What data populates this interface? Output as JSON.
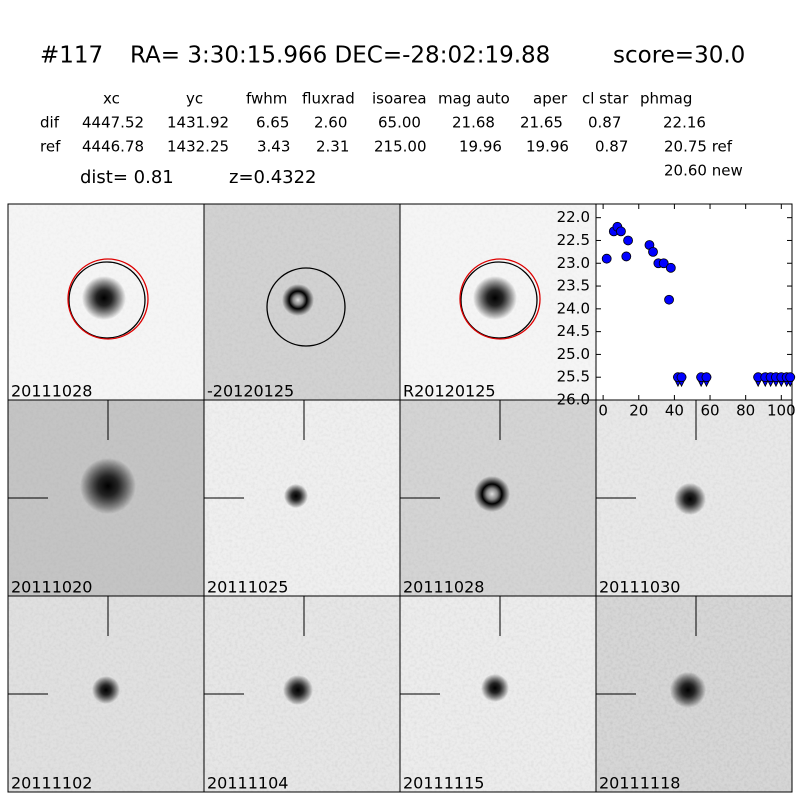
{
  "header": {
    "id": "#117",
    "coords": "RA= 3:30:15.966 DEC=-28:02:19.88",
    "score": "score=30.0"
  },
  "table": {
    "columns": [
      "xc",
      "yc",
      "fwhm",
      "fluxrad",
      "isoarea",
      "mag auto",
      "aper",
      "cl star",
      "phmag"
    ],
    "rows": [
      [
        "dif",
        "4447.52",
        "1431.92",
        "6.65",
        "2.60",
        "65.00",
        "21.68",
        "21.65",
        "0.87",
        "22.16"
      ],
      [
        "ref",
        "4446.78",
        "1432.25",
        "3.43",
        "2.31",
        "215.00",
        "19.96",
        "19.96",
        "0.87",
        "20.75 ref"
      ]
    ],
    "extra": "20.60 new",
    "dist": "dist=  0.81",
    "z": "z=0.4322"
  },
  "panels": [
    {
      "label": "20111028"
    },
    {
      "label": "-20120125"
    },
    {
      "label": "R20120125"
    },
    {
      "label": "20111020"
    },
    {
      "label": "20111025"
    },
    {
      "label": "20111028",
      "label_color": "#ff0000"
    },
    {
      "label": "20111030"
    },
    {
      "label": "20111102"
    },
    {
      "label": "20111104"
    },
    {
      "label": "20111115"
    },
    {
      "label": "20111118"
    }
  ],
  "chart_data": {
    "type": "scatter",
    "color": "#0000ff",
    "x": [
      2,
      6,
      8,
      10,
      13,
      14,
      26,
      28,
      31,
      34,
      37,
      38
    ],
    "values": [
      22.9,
      22.3,
      22.2,
      22.3,
      22.85,
      22.5,
      22.6,
      22.75,
      23.0,
      23.0,
      23.8,
      23.1
    ],
    "limit_x": [
      42,
      44,
      55,
      58,
      87,
      91,
      94,
      97,
      100,
      103,
      105
    ],
    "limit_values": [
      25.5,
      25.5,
      25.5,
      25.5,
      25.5,
      25.5,
      25.5,
      25.5,
      25.5,
      25.5,
      25.5
    ],
    "xlim": [
      -4,
      106
    ],
    "xticks": [
      0,
      20,
      40,
      60,
      80,
      100
    ],
    "ylim": [
      21.7,
      26.0
    ],
    "y_inverted": true,
    "yticks": [
      {
        "value": 22,
        "label": "22.0"
      },
      {
        "value": 22.5,
        "label": "22.5"
      },
      {
        "value": 23,
        "label": "23.0"
      },
      {
        "value": 23.5,
        "label": "23.5"
      },
      {
        "value": 24,
        "label": "24.0"
      },
      {
        "value": 24.5,
        "label": "24.5"
      },
      {
        "value": 25,
        "label": "25.0"
      },
      {
        "value": 25.5,
        "label": "25.5"
      },
      {
        "value": 26,
        "label": "26.0"
      }
    ]
  }
}
